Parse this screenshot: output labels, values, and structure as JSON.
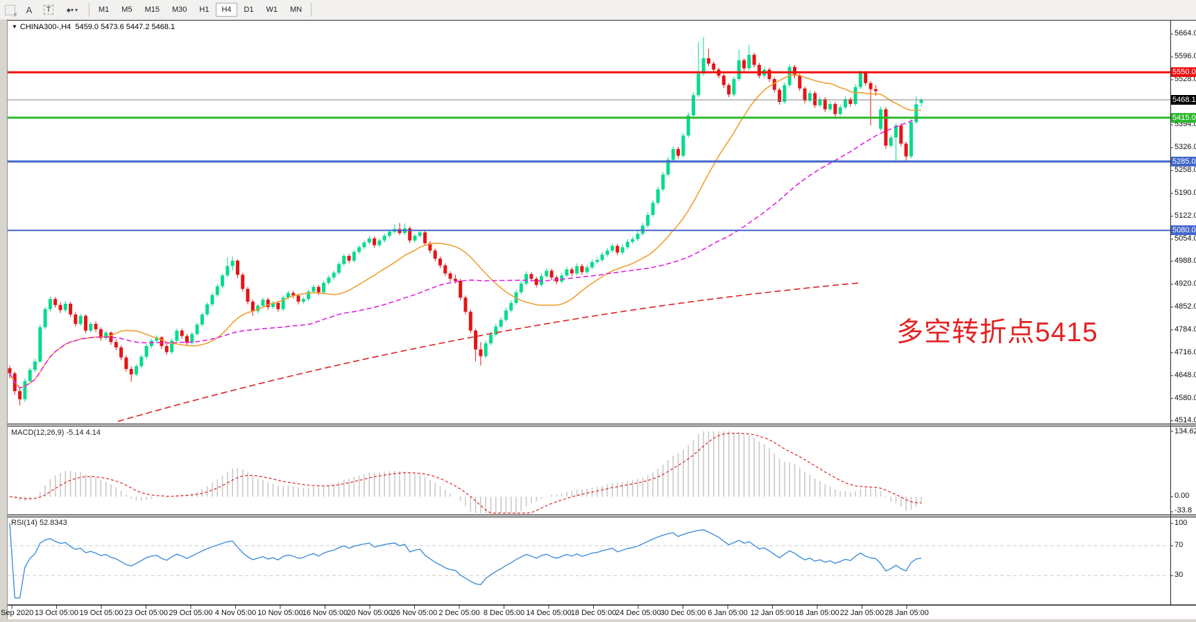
{
  "toolbar": {
    "icons": [
      {
        "name": "chart-grid-icon"
      },
      {
        "name": "cursor-arrow-icon",
        "glyph": "A"
      },
      {
        "name": "text-label-icon",
        "glyph": "T"
      },
      {
        "name": "objects-icon",
        "glyph": "◆◆"
      }
    ],
    "timeframes": [
      "M1",
      "M5",
      "M15",
      "M30",
      "H1",
      "H4",
      "D1",
      "W1",
      "MN"
    ],
    "active_timeframe": "H4"
  },
  "chart": {
    "symbol_period": "CHINA300-,H4",
    "ohlc": "5459.0 5473.6 5447.2 5468.1"
  },
  "colors": {
    "up": "#06dc8c",
    "down": "#e41515",
    "hline_red": "#ee0f0f",
    "hline_green": "#2eb82e",
    "hline_blue": "#4266cc",
    "price_line_grey": "#808080",
    "badge_black": "#000000",
    "ma_fast_orange": "#f0a030",
    "ma_mid_magenta": "#e520e5",
    "trend_red": "#dd2222",
    "macd_hist": "#c9c9c9",
    "macd_signal": "#e02020",
    "rsi_line": "#3f8edc",
    "annotation_red": "#e32222"
  },
  "price_axis": {
    "ticks": [
      5664.0,
      5596.0,
      5528.0,
      5394.0,
      5326.0,
      5258.0,
      5190.0,
      5122.0,
      5054.0,
      4988.0,
      4920.0,
      4852.0,
      4784.0,
      4716.0,
      4648.0,
      4580.0,
      4514.0
    ],
    "badges": [
      {
        "label": "5550.0",
        "price": 5550.0,
        "bg": "#ee0f0f"
      },
      {
        "label": "5468.1",
        "price": 5468.1,
        "bg": "#000000"
      },
      {
        "label": "5415.0",
        "price": 5415.0,
        "bg": "#2eb82e"
      },
      {
        "label": "5285.0",
        "price": 5285.0,
        "bg": "#4266cc"
      },
      {
        "label": "5080.0",
        "price": 5080.0,
        "bg": "#4266cc"
      }
    ]
  },
  "hlines": [
    {
      "price": 5550.0,
      "color": "#ee0f0f",
      "width": 3
    },
    {
      "price": 5468.1,
      "color": "#808080",
      "width": 1
    },
    {
      "price": 5415.0,
      "color": "#2eb82e",
      "width": 3
    },
    {
      "price": 5285.0,
      "color": "#4266cc",
      "width": 3
    },
    {
      "price": 5080.0,
      "color": "#4266cc",
      "width": 2
    }
  ],
  "indicators": {
    "macd": {
      "name": "MACD(12,26,9)",
      "values": "-5.14 4.14",
      "axis_labels": [
        "134.62",
        "0.00",
        "-33.8"
      ],
      "axis_max": 134.62,
      "axis_min": -33.8
    },
    "rsi": {
      "name": "RSI(14)",
      "value": "52.8343",
      "axis_labels": [
        "100",
        "70",
        "30"
      ],
      "levels": [
        70,
        30
      ]
    }
  },
  "time_axis": {
    "labels": [
      "29 Sep 2020",
      "13 Oct 05:00",
      "19 Oct 05:00",
      "23 Oct 05:00",
      "29 Oct 05:00",
      "4 Nov 05:00",
      "10 Nov 05:00",
      "16 Nov 05:00",
      "20 Nov 05:00",
      "26 Nov 05:00",
      "2 Dec 05:00",
      "8 Dec 05:00",
      "14 Dec 05:00",
      "18 Dec 05:00",
      "24 Dec 05:00",
      "30 Dec 05:00",
      "6 Jan 05:00",
      "12 Jan 05:00",
      "18 Jan 05:00",
      "22 Jan 05:00",
      "28 Jan 05:00"
    ]
  },
  "annotation": {
    "text": "多空转折点5415",
    "color": "#e32222"
  },
  "chart_data": {
    "type": "candlestick",
    "symbol": "CHINA300-",
    "period": "H4",
    "current_bar": {
      "open": 5459.0,
      "high": 5473.6,
      "low": 5447.2,
      "close": 5468.1
    },
    "ma_fast_period": 20,
    "ma_mid_period": 60,
    "trendline": {
      "points_xprice": [
        [
          170,
          4512
        ],
        [
          700,
          4770
        ],
        [
          1240,
          4924
        ]
      ]
    },
    "candles": [
      [
        4670,
        4678,
        4640,
        4655
      ],
      [
        4655,
        4660,
        4592,
        4602
      ],
      [
        4602,
        4610,
        4560,
        4578
      ],
      [
        4578,
        4640,
        4570,
        4632
      ],
      [
        4632,
        4672,
        4626,
        4665
      ],
      [
        4665,
        4698,
        4658,
        4690
      ],
      [
        4690,
        4800,
        4686,
        4792
      ],
      [
        4792,
        4852,
        4786,
        4846
      ],
      [
        4846,
        4884,
        4838,
        4876
      ],
      [
        4876,
        4882,
        4850,
        4858
      ],
      [
        4858,
        4866,
        4834,
        4843
      ],
      [
        4843,
        4870,
        4836,
        4862
      ],
      [
        4862,
        4868,
        4822,
        4830
      ],
      [
        4830,
        4838,
        4794,
        4802
      ],
      [
        4802,
        4832,
        4796,
        4826
      ],
      [
        4826,
        4830,
        4774,
        4782
      ],
      [
        4782,
        4808,
        4776,
        4802
      ],
      [
        4802,
        4810,
        4778,
        4786
      ],
      [
        4786,
        4792,
        4752,
        4760
      ],
      [
        4760,
        4782,
        4754,
        4776
      ],
      [
        4776,
        4780,
        4740,
        4748
      ],
      [
        4748,
        4756,
        4724,
        4732
      ],
      [
        4732,
        4738,
        4694,
        4702
      ],
      [
        4702,
        4708,
        4660,
        4668
      ],
      [
        4668,
        4676,
        4630,
        4652
      ],
      [
        4652,
        4682,
        4646,
        4676
      ],
      [
        4676,
        4710,
        4670,
        4704
      ],
      [
        4704,
        4742,
        4698,
        4736
      ],
      [
        4736,
        4758,
        4730,
        4752
      ],
      [
        4752,
        4768,
        4744,
        4762
      ],
      [
        4762,
        4766,
        4728,
        4736
      ],
      [
        4736,
        4742,
        4710,
        4718
      ],
      [
        4718,
        4758,
        4712,
        4752
      ],
      [
        4752,
        4788,
        4746,
        4782
      ],
      [
        4782,
        4788,
        4758,
        4766
      ],
      [
        4766,
        4772,
        4738,
        4746
      ],
      [
        4746,
        4778,
        4740,
        4772
      ],
      [
        4772,
        4806,
        4766,
        4800
      ],
      [
        4800,
        4836,
        4794,
        4830
      ],
      [
        4830,
        4866,
        4824,
        4860
      ],
      [
        4860,
        4894,
        4854,
        4888
      ],
      [
        4888,
        4920,
        4882,
        4914
      ],
      [
        4914,
        4952,
        4908,
        4946
      ],
      [
        4946,
        5000,
        4940,
        4974
      ],
      [
        4974,
        5002,
        4960,
        4990
      ],
      [
        4990,
        4994,
        4938,
        4948
      ],
      [
        4948,
        4954,
        4898,
        4906
      ],
      [
        4906,
        4912,
        4860,
        4868
      ],
      [
        4868,
        4874,
        4826,
        4840
      ],
      [
        4840,
        4862,
        4832,
        4856
      ],
      [
        4856,
        4880,
        4850,
        4874
      ],
      [
        4874,
        4880,
        4844,
        4852
      ],
      [
        4852,
        4870,
        4846,
        4864
      ],
      [
        4864,
        4870,
        4838,
        4846
      ],
      [
        4846,
        4886,
        4840,
        4880
      ],
      [
        4880,
        4900,
        4874,
        4894
      ],
      [
        4894,
        4900,
        4878,
        4886
      ],
      [
        4886,
        4892,
        4860,
        4868
      ],
      [
        4868,
        4882,
        4862,
        4876
      ],
      [
        4876,
        4904,
        4870,
        4898
      ],
      [
        4898,
        4918,
        4892,
        4912
      ],
      [
        4912,
        4918,
        4888,
        4896
      ],
      [
        4896,
        4930,
        4890,
        4924
      ],
      [
        4924,
        4946,
        4918,
        4940
      ],
      [
        4940,
        4960,
        4934,
        4954
      ],
      [
        4954,
        4986,
        4948,
        4980
      ],
      [
        4980,
        5010,
        4974,
        5004
      ],
      [
        5004,
        5010,
        4982,
        4990
      ],
      [
        4990,
        5022,
        4984,
        5016
      ],
      [
        5016,
        5036,
        5010,
        5030
      ],
      [
        5030,
        5050,
        5024,
        5044
      ],
      [
        5044,
        5062,
        5038,
        5056
      ],
      [
        5056,
        5062,
        5028,
        5036
      ],
      [
        5036,
        5056,
        5030,
        5050
      ],
      [
        5050,
        5070,
        5044,
        5064
      ],
      [
        5064,
        5082,
        5058,
        5076
      ],
      [
        5076,
        5098,
        5070,
        5084
      ],
      [
        5084,
        5102,
        5066,
        5072
      ],
      [
        5072,
        5100,
        5066,
        5086
      ],
      [
        5086,
        5092,
        5042,
        5050
      ],
      [
        5050,
        5070,
        5044,
        5064
      ],
      [
        5064,
        5080,
        5058,
        5074
      ],
      [
        5074,
        5080,
        5034,
        5042
      ],
      [
        5042,
        5048,
        5012,
        5020
      ],
      [
        5020,
        5026,
        4988,
        4996
      ],
      [
        4996,
        5002,
        4968,
        4976
      ],
      [
        4976,
        4982,
        4944,
        4952
      ],
      [
        4952,
        4958,
        4928,
        4936
      ],
      [
        4936,
        4948,
        4922,
        4930
      ],
      [
        4930,
        4936,
        4872,
        4880
      ],
      [
        4880,
        4886,
        4830,
        4838
      ],
      [
        4838,
        4844,
        4774,
        4782
      ],
      [
        4782,
        4788,
        4690,
        4726
      ],
      [
        4726,
        4748,
        4678,
        4706
      ],
      [
        4706,
        4752,
        4700,
        4744
      ],
      [
        4744,
        4778,
        4738,
        4770
      ],
      [
        4770,
        4802,
        4764,
        4794
      ],
      [
        4794,
        4822,
        4788,
        4814
      ],
      [
        4814,
        4850,
        4808,
        4842
      ],
      [
        4842,
        4872,
        4836,
        4864
      ],
      [
        4864,
        4904,
        4858,
        4896
      ],
      [
        4896,
        4930,
        4890,
        4922
      ],
      [
        4922,
        4958,
        4916,
        4950
      ],
      [
        4950,
        4956,
        4928,
        4936
      ],
      [
        4936,
        4942,
        4910,
        4918
      ],
      [
        4918,
        4952,
        4912,
        4944
      ],
      [
        4944,
        4968,
        4938,
        4960
      ],
      [
        4960,
        4966,
        4932,
        4940
      ],
      [
        4940,
        4946,
        4920,
        4928
      ],
      [
        4928,
        4954,
        4922,
        4946
      ],
      [
        4946,
        4972,
        4940,
        4964
      ],
      [
        4964,
        4970,
        4944,
        4952
      ],
      [
        4952,
        4982,
        4946,
        4974
      ],
      [
        4974,
        4980,
        4948,
        4956
      ],
      [
        4956,
        4978,
        4950,
        4970
      ],
      [
        4970,
        4994,
        4964,
        4986
      ],
      [
        4986,
        5000,
        4980,
        4992
      ],
      [
        4992,
        5016,
        4986,
        5008
      ],
      [
        5008,
        5028,
        5002,
        5020
      ],
      [
        5020,
        5042,
        5014,
        5034
      ],
      [
        5034,
        5040,
        5006,
        5014
      ],
      [
        5014,
        5038,
        5008,
        5030
      ],
      [
        5030,
        5054,
        5024,
        5046
      ],
      [
        5046,
        5062,
        5040,
        5054
      ],
      [
        5054,
        5078,
        5048,
        5070
      ],
      [
        5070,
        5102,
        5064,
        5094
      ],
      [
        5094,
        5134,
        5088,
        5126
      ],
      [
        5126,
        5170,
        5120,
        5162
      ],
      [
        5162,
        5210,
        5156,
        5202
      ],
      [
        5202,
        5254,
        5196,
        5246
      ],
      [
        5246,
        5298,
        5240,
        5290
      ],
      [
        5290,
        5330,
        5284,
        5322
      ],
      [
        5322,
        5328,
        5294,
        5302
      ],
      [
        5302,
        5370,
        5296,
        5362
      ],
      [
        5362,
        5430,
        5356,
        5422
      ],
      [
        5422,
        5490,
        5416,
        5482
      ],
      [
        5482,
        5640,
        5476,
        5546
      ],
      [
        5546,
        5655,
        5540,
        5592
      ],
      [
        5592,
        5620,
        5568,
        5576
      ],
      [
        5576,
        5582,
        5550,
        5558
      ],
      [
        5558,
        5564,
        5532,
        5540
      ],
      [
        5540,
        5546,
        5504,
        5512
      ],
      [
        5512,
        5518,
        5476,
        5484
      ],
      [
        5484,
        5538,
        5478,
        5530
      ],
      [
        5530,
        5618,
        5524,
        5586
      ],
      [
        5586,
        5592,
        5554,
        5562
      ],
      [
        5562,
        5632,
        5556,
        5602
      ],
      [
        5602,
        5608,
        5564,
        5572
      ],
      [
        5572,
        5578,
        5532,
        5540
      ],
      [
        5540,
        5566,
        5534,
        5558
      ],
      [
        5558,
        5564,
        5522,
        5530
      ],
      [
        5530,
        5536,
        5490,
        5498
      ],
      [
        5498,
        5504,
        5454,
        5462
      ],
      [
        5462,
        5520,
        5456,
        5512
      ],
      [
        5512,
        5574,
        5506,
        5566
      ],
      [
        5566,
        5572,
        5532,
        5540
      ],
      [
        5540,
        5546,
        5494,
        5502
      ],
      [
        5502,
        5508,
        5458,
        5466
      ],
      [
        5466,
        5496,
        5460,
        5488
      ],
      [
        5488,
        5494,
        5444,
        5452
      ],
      [
        5452,
        5478,
        5446,
        5470
      ],
      [
        5470,
        5476,
        5432,
        5440
      ],
      [
        5440,
        5464,
        5434,
        5456
      ],
      [
        5456,
        5462,
        5418,
        5426
      ],
      [
        5426,
        5454,
        5420,
        5446
      ],
      [
        5446,
        5478,
        5440,
        5470
      ],
      [
        5470,
        5476,
        5448,
        5456
      ],
      [
        5456,
        5514,
        5450,
        5506
      ],
      [
        5506,
        5556,
        5500,
        5548
      ],
      [
        5548,
        5554,
        5510,
        5518
      ],
      [
        5518,
        5524,
        5392,
        5500
      ],
      [
        5500,
        5512,
        5480,
        5494
      ],
      [
        5382,
        5448,
        5376,
        5440
      ],
      [
        5440,
        5446,
        5322,
        5332
      ],
      [
        5332,
        5364,
        5326,
        5356
      ],
      [
        5356,
        5398,
        5281,
        5392
      ],
      [
        5392,
        5398,
        5330,
        5338
      ],
      [
        5338,
        5344,
        5288,
        5300
      ],
      [
        5300,
        5410,
        5294,
        5402
      ],
      [
        5402,
        5478,
        5396,
        5455
      ],
      [
        5459,
        5473.6,
        5447.2,
        5468.1
      ]
    ]
  }
}
